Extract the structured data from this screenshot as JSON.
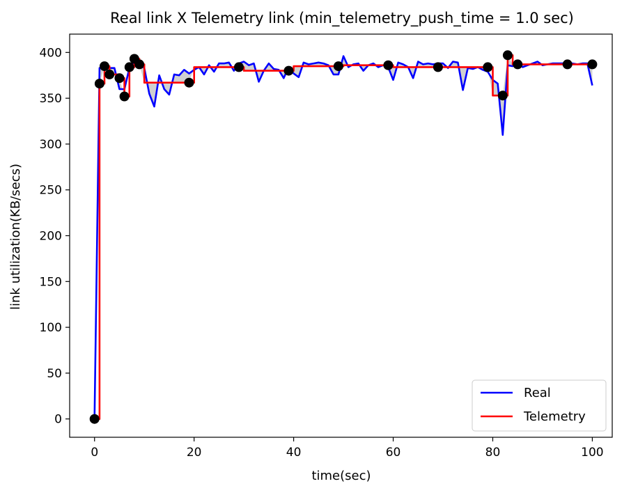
{
  "chart_data": {
    "type": "line",
    "title": "Real link X Telemetry link (min_telemetry_push_time = 1.0 sec)",
    "xlabel": "time(sec)",
    "ylabel": "link utilization(KB/secs)",
    "xlim": [
      -5,
      104
    ],
    "ylim": [
      -20,
      420
    ],
    "xticks": [
      0,
      20,
      40,
      60,
      80,
      100
    ],
    "yticks": [
      0,
      50,
      100,
      150,
      200,
      250,
      300,
      350,
      400
    ],
    "grid": false,
    "legend_position": "lower-right",
    "series": [
      {
        "name": "Real",
        "color": "#0000ff",
        "x": [
          0,
          1,
          2,
          3,
          4,
          5,
          6,
          7,
          8,
          9,
          10,
          11,
          12,
          13,
          14,
          15,
          16,
          17,
          18,
          19,
          20,
          21,
          22,
          23,
          24,
          25,
          26,
          27,
          28,
          29,
          30,
          31,
          32,
          33,
          34,
          35,
          36,
          37,
          38,
          39,
          40,
          41,
          42,
          43,
          44,
          45,
          46,
          47,
          48,
          49,
          50,
          51,
          52,
          53,
          54,
          55,
          56,
          57,
          58,
          59,
          60,
          61,
          62,
          63,
          64,
          65,
          66,
          67,
          68,
          69,
          70,
          71,
          72,
          73,
          74,
          75,
          76,
          77,
          78,
          79,
          80,
          81,
          82,
          83,
          84,
          85,
          86,
          87,
          88,
          89,
          90,
          91,
          92,
          93,
          94,
          95,
          96,
          97,
          98,
          99,
          100
        ],
        "y": [
          0,
          383,
          384,
          383,
          383,
          360,
          360,
          383,
          390,
          387,
          383,
          355,
          341,
          375,
          360,
          354,
          376,
          375,
          381,
          377,
          381,
          384,
          376,
          386,
          379,
          388,
          388,
          389,
          380,
          388,
          390,
          386,
          388,
          368,
          380,
          388,
          382,
          381,
          372,
          384,
          377,
          373,
          389,
          387,
          388,
          389,
          388,
          386,
          376,
          376,
          396,
          384,
          387,
          388,
          380,
          386,
          388,
          384,
          386,
          384,
          370,
          389,
          387,
          384,
          372,
          390,
          387,
          388,
          387,
          388,
          388,
          383,
          390,
          389,
          359,
          383,
          382,
          384,
          381,
          379,
          370,
          366,
          310,
          386,
          385,
          390,
          384,
          386,
          388,
          390,
          386,
          387,
          388,
          388,
          388,
          388,
          388,
          387,
          388,
          388,
          364
        ]
      },
      {
        "name": "Telemetry",
        "color": "#ff0000",
        "x": [
          0,
          1,
          1,
          2,
          2,
          3,
          3,
          5,
          5,
          6,
          6,
          7,
          7,
          8,
          8,
          9,
          9,
          10,
          10,
          19,
          19,
          20,
          20,
          29,
          29,
          30,
          30,
          39,
          39,
          40,
          40,
          49,
          49,
          50,
          50,
          59,
          59,
          60,
          60,
          69,
          69,
          70,
          70,
          79,
          79,
          80,
          80,
          82,
          82,
          83,
          83,
          84,
          84,
          85,
          85,
          95,
          95,
          100
        ],
        "y": [
          0,
          0,
          366,
          366,
          385,
          385,
          376,
          376,
          372,
          372,
          352,
          352,
          384,
          384,
          393,
          393,
          387,
          387,
          367,
          367,
          367,
          367,
          384,
          384,
          384,
          384,
          380,
          380,
          380,
          380,
          385,
          385,
          385,
          385,
          386,
          386,
          386,
          386,
          384,
          384,
          384,
          384,
          384,
          384,
          384,
          384,
          353,
          353,
          353,
          353,
          397,
          397,
          387,
          387,
          387,
          387,
          387,
          387
        ]
      }
    ],
    "points": {
      "color": "#000000",
      "x": [
        0,
        1,
        2,
        3,
        5,
        6,
        7,
        8,
        9,
        19,
        29,
        39,
        49,
        59,
        69,
        79,
        82,
        83,
        85,
        95,
        100
      ],
      "y": [
        0,
        366,
        385,
        376,
        372,
        352,
        384,
        393,
        387,
        367,
        384,
        380,
        385,
        386,
        384,
        384,
        353,
        397,
        387,
        387,
        387
      ]
    }
  }
}
